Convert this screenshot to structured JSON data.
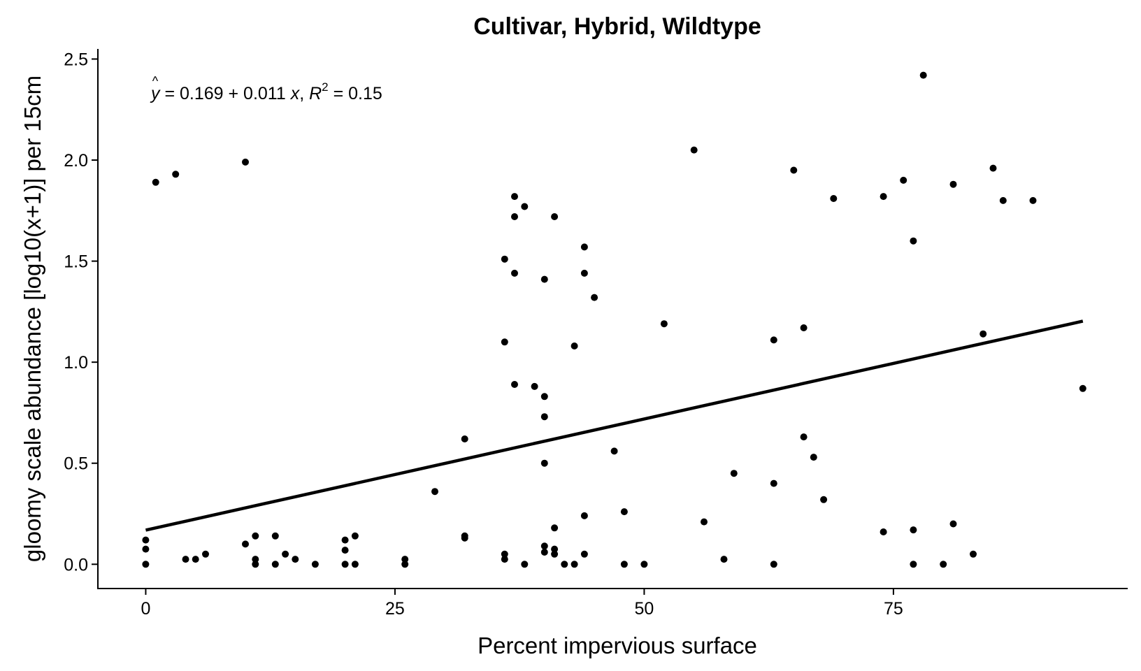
{
  "chart_data": {
    "type": "scatter",
    "title": "Cultivar, Hybrid, Wildtype",
    "xlabel": "Percent impervious surface",
    "ylabel": "gloomy scale abundance [log10(x+1)] per 15cm",
    "xlim": [
      -4.8,
      98.5
    ],
    "ylim": [
      -0.12,
      2.55
    ],
    "xticks": [
      0,
      25,
      50,
      75
    ],
    "xtick_labels": [
      "0",
      "25",
      "50",
      "75"
    ],
    "yticks": [
      0.0,
      0.5,
      1.0,
      1.5,
      2.0,
      2.5
    ],
    "ytick_labels": [
      "0.0",
      "0.5",
      "1.0",
      "1.5",
      "2.0",
      "2.5"
    ],
    "grid": false,
    "legend": "none",
    "annotation": {
      "yhat": "y",
      "eq_text": " = 0.169 + 0.011 ",
      "x_var": "x",
      "sep": ", ",
      "r_sym": "R",
      "r_exp": "2",
      "r_val": " = 0.15"
    },
    "regression": {
      "intercept": 0.169,
      "slope": 0.011,
      "x_range": [
        0,
        94
      ]
    },
    "points": [
      [
        0,
        0.0
      ],
      [
        0,
        0.075
      ],
      [
        0,
        0.12
      ],
      [
        1,
        1.89
      ],
      [
        3,
        1.93
      ],
      [
        4,
        0.025
      ],
      [
        5,
        0.025
      ],
      [
        6,
        0.05
      ],
      [
        10,
        0.1
      ],
      [
        10,
        1.99
      ],
      [
        11,
        0.0
      ],
      [
        11,
        0.025
      ],
      [
        11,
        0.14
      ],
      [
        13,
        0.0
      ],
      [
        13,
        0.14
      ],
      [
        14,
        0.05
      ],
      [
        15,
        0.025
      ],
      [
        17,
        0.0
      ],
      [
        20,
        0.0
      ],
      [
        20,
        0.07
      ],
      [
        20,
        0.12
      ],
      [
        21,
        0.0
      ],
      [
        21,
        0.14
      ],
      [
        26,
        0.0
      ],
      [
        26,
        0.025
      ],
      [
        29,
        0.36
      ],
      [
        32,
        0.13
      ],
      [
        32,
        0.14
      ],
      [
        32,
        0.62
      ],
      [
        36,
        0.025
      ],
      [
        36,
        0.05
      ],
      [
        36,
        1.1
      ],
      [
        36,
        1.51
      ],
      [
        37,
        0.89
      ],
      [
        37,
        1.44
      ],
      [
        37,
        1.72
      ],
      [
        37,
        1.82
      ],
      [
        38,
        0.0
      ],
      [
        38,
        1.77
      ],
      [
        39,
        0.88
      ],
      [
        40,
        0.06
      ],
      [
        40,
        0.09
      ],
      [
        40,
        0.5
      ],
      [
        40,
        0.73
      ],
      [
        40,
        0.83
      ],
      [
        40,
        1.41
      ],
      [
        41,
        0.05
      ],
      [
        41,
        0.075
      ],
      [
        41,
        0.18
      ],
      [
        41,
        1.72
      ],
      [
        42,
        0.0
      ],
      [
        43,
        0.0
      ],
      [
        43,
        1.08
      ],
      [
        44,
        0.05
      ],
      [
        44,
        0.24
      ],
      [
        44,
        1.44
      ],
      [
        44,
        1.57
      ],
      [
        45,
        1.32
      ],
      [
        47,
        0.56
      ],
      [
        48,
        0.0
      ],
      [
        48,
        0.26
      ],
      [
        50,
        0.0
      ],
      [
        52,
        1.19
      ],
      [
        55,
        2.05
      ],
      [
        56,
        0.21
      ],
      [
        58,
        0.025
      ],
      [
        59,
        0.45
      ],
      [
        63,
        0.0
      ],
      [
        63,
        0.4
      ],
      [
        63,
        1.11
      ],
      [
        65,
        1.95
      ],
      [
        66,
        0.63
      ],
      [
        66,
        1.17
      ],
      [
        67,
        0.53
      ],
      [
        68,
        0.32
      ],
      [
        69,
        1.81
      ],
      [
        74,
        0.16
      ],
      [
        74,
        1.82
      ],
      [
        76,
        1.9
      ],
      [
        77,
        0.0
      ],
      [
        77,
        0.17
      ],
      [
        77,
        1.6
      ],
      [
        78,
        2.42
      ],
      [
        80,
        0.0
      ],
      [
        81,
        0.2
      ],
      [
        81,
        1.88
      ],
      [
        83,
        0.05
      ],
      [
        84,
        1.14
      ],
      [
        85,
        1.96
      ],
      [
        86,
        1.8
      ],
      [
        89,
        1.8
      ],
      [
        94,
        0.87
      ]
    ]
  }
}
